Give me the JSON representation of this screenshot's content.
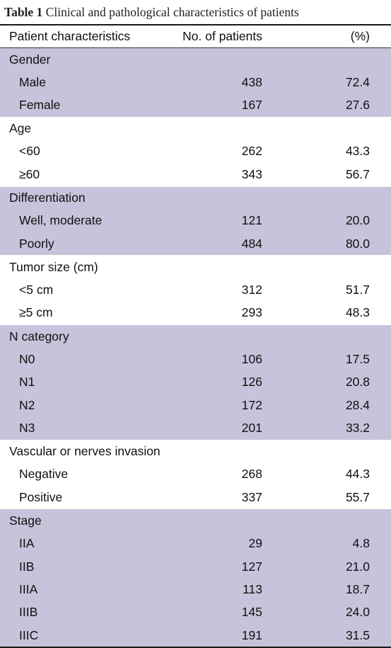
{
  "caption": {
    "label": "Table 1",
    "text": "Clinical and pathological characteristics of patients"
  },
  "header": {
    "col1": "Patient characteristics",
    "col2": "No. of patients",
    "col3": "(%)"
  },
  "groups": [
    {
      "title": "Gender",
      "rows": [
        {
          "label": "Male",
          "n": "438",
          "pct": "72.4"
        },
        {
          "label": "Female",
          "n": "167",
          "pct": "27.6"
        }
      ]
    },
    {
      "title": "Age",
      "rows": [
        {
          "label": "<60",
          "n": "262",
          "pct": "43.3"
        },
        {
          "label": "≥60",
          "n": "343",
          "pct": "56.7"
        }
      ]
    },
    {
      "title": "Differentiation",
      "rows": [
        {
          "label": "Well, moderate",
          "n": "121",
          "pct": "20.0"
        },
        {
          "label": "Poorly",
          "n": "484",
          "pct": "80.0"
        }
      ]
    },
    {
      "title": "Tumor size (cm)",
      "rows": [
        {
          "label": "<5 cm",
          "n": "312",
          "pct": "51.7"
        },
        {
          "label": "≥5 cm",
          "n": "293",
          "pct": "48.3"
        }
      ]
    },
    {
      "title": "N category",
      "rows": [
        {
          "label": "N0",
          "n": "106",
          "pct": "17.5"
        },
        {
          "label": "N1",
          "n": "126",
          "pct": "20.8"
        },
        {
          "label": "N2",
          "n": "172",
          "pct": "28.4"
        },
        {
          "label": "N3",
          "n": "201",
          "pct": "33.2"
        }
      ]
    },
    {
      "title": "Vascular or nerves invasion",
      "rows": [
        {
          "label": "Negative",
          "n": "268",
          "pct": "44.3"
        },
        {
          "label": "Positive",
          "n": "337",
          "pct": "55.7"
        }
      ]
    },
    {
      "title": "Stage",
      "rows": [
        {
          "label": "IIA",
          "n": "29",
          "pct": "4.8"
        },
        {
          "label": "IIB",
          "n": "127",
          "pct": "21.0"
        },
        {
          "label": "IIIA",
          "n": "113",
          "pct": "18.7"
        },
        {
          "label": "IIIB",
          "n": "145",
          "pct": "24.0"
        },
        {
          "label": "IIIC",
          "n": "191",
          "pct": "31.5"
        }
      ]
    }
  ],
  "colors": {
    "shade": "#c5c4da",
    "plain": "#ffffff"
  }
}
